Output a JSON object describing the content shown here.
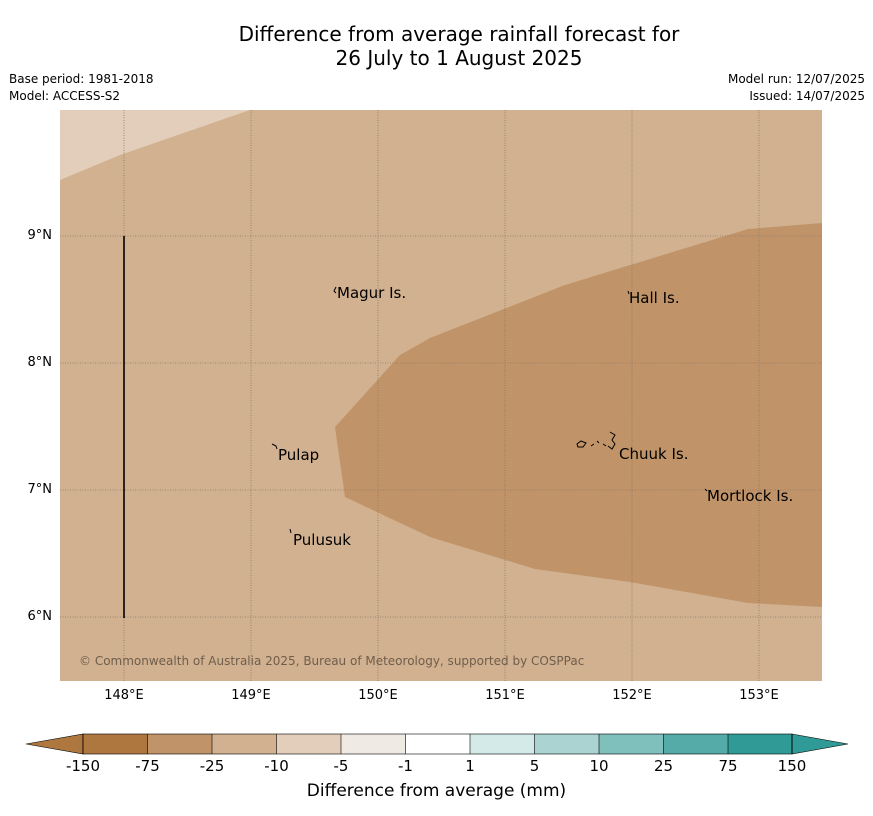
{
  "title": {
    "line1": "Difference from average rainfall forecast for",
    "line2": "26 July to 1 August 2025"
  },
  "meta": {
    "base_period": "Base period: 1981-2018",
    "model": "Model: ACCESS-S2",
    "model_run": "Model run: 12/07/2025",
    "issued": "Issued: 14/07/2025"
  },
  "map": {
    "lon_range": [
      147.5,
      153.5
    ],
    "lat_range": [
      5.5,
      10.0
    ],
    "lat_ticks": [
      {
        "value": 9,
        "label": "9°N"
      },
      {
        "value": 8,
        "label": "8°N"
      },
      {
        "value": 7,
        "label": "7°N"
      },
      {
        "value": 6,
        "label": "6°N"
      }
    ],
    "lon_ticks": [
      {
        "value": 148,
        "label": "148°E"
      },
      {
        "value": 149,
        "label": "149°E"
      },
      {
        "value": 150,
        "label": "150°E"
      },
      {
        "value": 151,
        "label": "151°E"
      },
      {
        "value": 152,
        "label": "152°E"
      },
      {
        "value": 153,
        "label": "153°E"
      }
    ],
    "places": [
      {
        "name": "Magur Is.",
        "lon": 149.67,
        "lat": 8.56
      },
      {
        "name": "Hall Is.",
        "lon": 151.97,
        "lat": 8.52
      },
      {
        "name": "Pulap",
        "lon": 149.2,
        "lat": 7.3
      },
      {
        "name": "Chuuk Is.",
        "lon": 151.87,
        "lat": 7.3
      },
      {
        "name": "Mortlock Is.",
        "lon": 152.6,
        "lat": 6.97
      },
      {
        "name": "Pulusuk",
        "lon": 149.32,
        "lat": 6.66
      }
    ],
    "copyright": "© Commonwealth of Australia 2025, Bureau of Meteorology, supported by COSPPac"
  },
  "legend": {
    "label": "Difference from average (mm)",
    "ticks": [
      "-150",
      "-75",
      "-25",
      "-10",
      "-5",
      "-1",
      "1",
      "5",
      "10",
      "25",
      "75",
      "150"
    ],
    "colors": [
      "#ad773f",
      "#c09468",
      "#d1b190",
      "#e2ceba",
      "#efebe4",
      "#ffffff",
      "#d4eae9",
      "#abd3d1",
      "#7fbfbc",
      "#54aba7",
      "#309a97"
    ],
    "under_color": "#ad773f",
    "over_color": "#309a97"
  },
  "colors": {
    "category_dry_25": "#d1b190",
    "category_dry_75": "#c09468",
    "category_dry_10": "#e2ceba"
  }
}
